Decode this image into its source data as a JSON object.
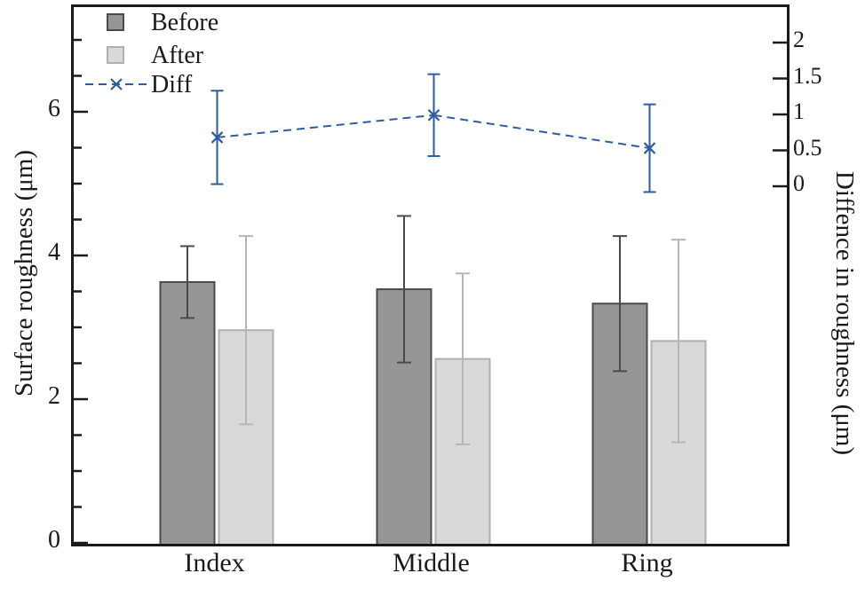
{
  "chart_data": {
    "type": "bar+line",
    "categories": [
      "Index",
      "Middle",
      "Ring"
    ],
    "series": [
      {
        "name": "Before",
        "type": "bar",
        "axis": "left",
        "values": [
          3.63,
          3.53,
          3.33
        ],
        "errors": [
          0.5,
          1.02,
          0.94
        ]
      },
      {
        "name": "After",
        "type": "bar",
        "axis": "left",
        "values": [
          2.96,
          2.56,
          2.81
        ],
        "errors": [
          1.31,
          1.19,
          1.41
        ]
      },
      {
        "name": "Diff",
        "type": "line",
        "axis": "right",
        "values": [
          0.68,
          0.99,
          0.53
        ],
        "errors": [
          0.65,
          0.57,
          0.61
        ]
      }
    ],
    "left_axis": {
      "label": "Surface roughness (μm)",
      "tick_labels": [
        0,
        2,
        4,
        6
      ],
      "range": [
        0,
        7.45
      ],
      "minor_step": 0.5
    },
    "right_axis": {
      "label": "Diffence in roughness (μm)",
      "tick_labels": [
        0,
        0.5,
        1,
        1.5,
        2
      ]
    },
    "x_axis": {
      "tick_labels": [
        "Index",
        "Middle",
        "Ring"
      ]
    },
    "legend": {
      "position": "top-left-inside",
      "entries": [
        "Before",
        "After",
        "Diff"
      ]
    },
    "grid": "off",
    "line_style": "dashed",
    "line_marker": "x"
  },
  "colors": {
    "before_fill": "#969696",
    "before_border": "#4a4a4a",
    "before_error": "#4a4a4a",
    "after_fill": "#d9d9d9",
    "after_border": "#b0b0b0",
    "after_error": "#b6b6b6",
    "diff": "#2e5c9e",
    "axis": "#1a1a1a",
    "background": "#ffffff"
  }
}
